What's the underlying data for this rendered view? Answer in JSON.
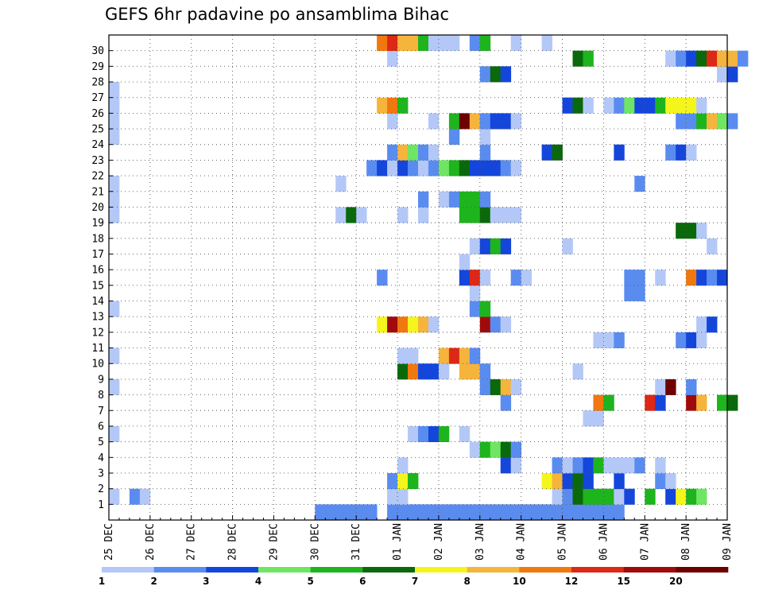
{
  "chart_data": {
    "type": "heatmap",
    "title": "GEFS 6hr padavine po ansamblima Bihac",
    "x_tick_labels": [
      "25 DEC",
      "26 DEC",
      "27 DEC",
      "28 DEC",
      "29 DEC",
      "30 DEC",
      "31 DEC",
      "01 JAN",
      "02 JAN",
      "03 JAN",
      "04 JAN",
      "05 JAN",
      "06 JAN",
      "07 JAN",
      "08 JAN",
      "09 JAN"
    ],
    "y_tick_labels": [
      "1",
      "2",
      "3",
      "4",
      "5",
      "6",
      "7",
      "8",
      "9",
      "10",
      "11",
      "12",
      "13",
      "14",
      "15",
      "16",
      "17",
      "18",
      "19",
      "20",
      "21",
      "22",
      "23",
      "24",
      "25",
      "26",
      "27",
      "28",
      "29",
      "30"
    ],
    "steps_per_day": 4,
    "grid": "dotted",
    "colorbar": {
      "placement": "bottom",
      "colors": [
        "#b4c8f8",
        "#5a8cf0",
        "#1446dc",
        "#6ee664",
        "#1eb41e",
        "#0a690a",
        "#f5f51e",
        "#f5b43c",
        "#f0780f",
        "#dc2814",
        "#a00a0a",
        "#6e0000"
      ],
      "labels": [
        "1",
        "2",
        "3",
        "4",
        "5",
        "6",
        "7",
        "8",
        "10",
        "12",
        "15",
        "20"
      ]
    },
    "cells_note": "member -> [[timestep, color_class], ...]; timestep counts 6-hour steps from 25 DEC 00Z; color_class indexes colorbar.colors",
    "cells": {
      "0": [
        [
          20,
          1
        ],
        [
          21,
          1
        ],
        [
          22,
          1
        ],
        [
          23,
          1
        ],
        [
          24,
          1
        ],
        [
          25,
          1
        ],
        [
          27,
          1
        ],
        [
          28,
          1
        ],
        [
          29,
          1
        ],
        [
          30,
          1
        ],
        [
          31,
          1
        ],
        [
          32,
          1
        ],
        [
          33,
          1
        ],
        [
          34,
          1
        ],
        [
          35,
          1
        ],
        [
          36,
          1
        ],
        [
          37,
          1
        ],
        [
          38,
          1
        ],
        [
          39,
          1
        ],
        [
          40,
          1
        ],
        [
          41,
          1
        ],
        [
          42,
          1
        ],
        [
          43,
          1
        ],
        [
          44,
          1
        ],
        [
          45,
          1
        ],
        [
          46,
          1
        ],
        [
          47,
          1
        ],
        [
          48,
          1
        ],
        [
          49,
          1
        ]
      ],
      "1": [
        [
          0,
          0
        ],
        [
          2,
          1
        ],
        [
          3,
          0
        ],
        [
          27,
          0
        ],
        [
          28,
          0
        ],
        [
          43,
          0
        ],
        [
          44,
          1
        ],
        [
          45,
          5
        ],
        [
          46,
          4
        ],
        [
          47,
          4
        ],
        [
          48,
          4
        ],
        [
          49,
          0
        ],
        [
          50,
          2
        ],
        [
          52,
          4
        ],
        [
          54,
          2
        ],
        [
          55,
          6
        ],
        [
          56,
          4
        ],
        [
          57,
          3
        ]
      ],
      "2": [
        [
          27,
          1
        ],
        [
          28,
          6
        ],
        [
          29,
          4
        ],
        [
          42,
          6
        ],
        [
          43,
          7
        ],
        [
          44,
          2
        ],
        [
          45,
          5
        ],
        [
          46,
          2
        ],
        [
          49,
          2
        ],
        [
          53,
          1
        ],
        [
          54,
          0
        ]
      ],
      "3": [
        [
          28,
          0
        ],
        [
          38,
          2
        ],
        [
          39,
          0
        ],
        [
          43,
          1
        ],
        [
          44,
          0
        ],
        [
          45,
          1
        ],
        [
          46,
          2
        ],
        [
          47,
          4
        ],
        [
          48,
          0
        ],
        [
          49,
          0
        ],
        [
          50,
          0
        ],
        [
          51,
          1
        ],
        [
          53,
          0
        ]
      ],
      "4": [
        [
          35,
          0
        ],
        [
          36,
          4
        ],
        [
          37,
          3
        ],
        [
          38,
          5
        ],
        [
          39,
          1
        ]
      ],
      "5": [
        [
          0,
          0
        ],
        [
          29,
          0
        ],
        [
          30,
          1
        ],
        [
          31,
          2
        ],
        [
          32,
          4
        ],
        [
          34,
          0
        ]
      ],
      "6": [
        [
          46,
          0
        ],
        [
          47,
          0
        ]
      ],
      "7": [
        [
          38,
          1
        ],
        [
          47,
          8
        ],
        [
          48,
          4
        ],
        [
          52,
          9
        ],
        [
          53,
          2
        ],
        [
          56,
          10
        ],
        [
          57,
          7
        ],
        [
          59,
          4
        ],
        [
          60,
          5
        ]
      ],
      "8": [
        [
          0,
          0
        ],
        [
          36,
          1
        ],
        [
          37,
          5
        ],
        [
          38,
          7
        ],
        [
          39,
          0
        ],
        [
          53,
          0
        ],
        [
          54,
          11
        ],
        [
          56,
          1
        ]
      ],
      "9": [
        [
          28,
          5
        ],
        [
          29,
          8
        ],
        [
          30,
          2
        ],
        [
          31,
          2
        ],
        [
          32,
          0
        ],
        [
          34,
          7
        ],
        [
          35,
          7
        ],
        [
          36,
          1
        ],
        [
          45,
          0
        ]
      ],
      "10": [
        [
          0,
          0
        ],
        [
          28,
          0
        ],
        [
          29,
          0
        ],
        [
          32,
          7
        ],
        [
          33,
          9
        ],
        [
          34,
          7
        ],
        [
          35,
          1
        ]
      ],
      "11": [
        [
          47,
          0
        ],
        [
          48,
          0
        ],
        [
          49,
          1
        ],
        [
          55,
          1
        ],
        [
          56,
          2
        ],
        [
          57,
          0
        ]
      ],
      "12": [
        [
          26,
          6
        ],
        [
          27,
          10
        ],
        [
          28,
          8
        ],
        [
          29,
          6
        ],
        [
          30,
          7
        ],
        [
          31,
          0
        ],
        [
          36,
          10
        ],
        [
          37,
          1
        ],
        [
          38,
          0
        ],
        [
          57,
          0
        ],
        [
          58,
          2
        ]
      ],
      "13": [
        [
          0,
          0
        ],
        [
          35,
          1
        ],
        [
          36,
          4
        ]
      ],
      "14": [
        [
          35,
          0
        ],
        [
          50,
          1
        ],
        [
          51,
          1
        ]
      ],
      "15": [
        [
          26,
          1
        ],
        [
          34,
          2
        ],
        [
          35,
          9
        ],
        [
          36,
          0
        ],
        [
          39,
          1
        ],
        [
          40,
          0
        ],
        [
          50,
          1
        ],
        [
          51,
          1
        ],
        [
          53,
          0
        ],
        [
          56,
          8
        ],
        [
          57,
          2
        ],
        [
          58,
          1
        ],
        [
          59,
          2
        ]
      ],
      "16": [
        [
          34,
          0
        ]
      ],
      "17": [
        [
          35,
          0
        ],
        [
          36,
          2
        ],
        [
          37,
          4
        ],
        [
          38,
          2
        ],
        [
          44,
          0
        ],
        [
          58,
          0
        ]
      ],
      "18": [
        [
          55,
          5
        ],
        [
          56,
          5
        ],
        [
          57,
          0
        ]
      ],
      "19": [
        [
          0,
          0
        ],
        [
          22,
          0
        ],
        [
          23,
          5
        ],
        [
          24,
          0
        ],
        [
          28,
          0
        ],
        [
          30,
          0
        ],
        [
          34,
          4
        ],
        [
          35,
          4
        ],
        [
          36,
          5
        ],
        [
          37,
          0
        ],
        [
          38,
          0
        ],
        [
          39,
          0
        ]
      ],
      "20": [
        [
          0,
          0
        ],
        [
          30,
          1
        ],
        [
          32,
          0
        ],
        [
          33,
          1
        ],
        [
          34,
          4
        ],
        [
          35,
          4
        ],
        [
          36,
          1
        ]
      ],
      "21": [
        [
          0,
          0
        ],
        [
          22,
          0
        ],
        [
          51,
          1
        ]
      ],
      "22": [
        [
          25,
          1
        ],
        [
          26,
          2
        ],
        [
          27,
          0
        ],
        [
          28,
          2
        ],
        [
          29,
          1
        ],
        [
          30,
          0
        ],
        [
          31,
          1
        ],
        [
          32,
          3
        ],
        [
          33,
          4
        ],
        [
          34,
          5
        ],
        [
          35,
          2
        ],
        [
          36,
          2
        ],
        [
          37,
          2
        ],
        [
          38,
          1
        ],
        [
          39,
          0
        ]
      ],
      "23": [
        [
          27,
          1
        ],
        [
          28,
          7
        ],
        [
          29,
          3
        ],
        [
          30,
          1
        ],
        [
          31,
          0
        ],
        [
          36,
          1
        ],
        [
          42,
          2
        ],
        [
          43,
          5
        ],
        [
          49,
          2
        ],
        [
          54,
          1
        ],
        [
          55,
          2
        ],
        [
          56,
          0
        ]
      ],
      "24": [
        [
          0,
          0
        ],
        [
          33,
          1
        ],
        [
          36,
          0
        ]
      ],
      "25": [
        [
          0,
          0
        ],
        [
          27,
          0
        ],
        [
          31,
          0
        ],
        [
          33,
          4
        ],
        [
          34,
          11
        ],
        [
          35,
          7
        ],
        [
          36,
          1
        ],
        [
          37,
          2
        ],
        [
          38,
          2
        ],
        [
          39,
          0
        ],
        [
          55,
          1
        ],
        [
          56,
          1
        ],
        [
          57,
          4
        ],
        [
          58,
          7
        ],
        [
          59,
          3
        ],
        [
          60,
          1
        ]
      ],
      "26": [
        [
          0,
          0
        ],
        [
          26,
          7
        ],
        [
          27,
          8
        ],
        [
          28,
          4
        ],
        [
          44,
          2
        ],
        [
          45,
          5
        ],
        [
          46,
          0
        ],
        [
          48,
          0
        ],
        [
          49,
          1
        ],
        [
          50,
          3
        ],
        [
          51,
          2
        ],
        [
          52,
          2
        ],
        [
          53,
          4
        ],
        [
          54,
          6
        ],
        [
          55,
          6
        ],
        [
          56,
          6
        ],
        [
          57,
          0
        ]
      ],
      "27": [
        [
          0,
          0
        ]
      ],
      "28": [
        [
          36,
          1
        ],
        [
          37,
          5
        ],
        [
          38,
          2
        ],
        [
          59,
          0
        ],
        [
          60,
          2
        ]
      ],
      "29": [
        [
          27,
          0
        ],
        [
          45,
          5
        ],
        [
          46,
          4
        ],
        [
          54,
          0
        ],
        [
          55,
          1
        ],
        [
          56,
          2
        ],
        [
          57,
          5
        ],
        [
          58,
          9
        ],
        [
          59,
          7
        ],
        [
          60,
          7
        ],
        [
          61,
          1
        ]
      ],
      "30": [
        [
          26,
          8
        ],
        [
          27,
          9
        ],
        [
          28,
          7
        ],
        [
          29,
          7
        ],
        [
          30,
          4
        ],
        [
          31,
          0
        ],
        [
          32,
          0
        ],
        [
          33,
          0
        ],
        [
          35,
          1
        ],
        [
          36,
          4
        ],
        [
          39,
          0
        ],
        [
          42,
          0
        ]
      ]
    }
  }
}
